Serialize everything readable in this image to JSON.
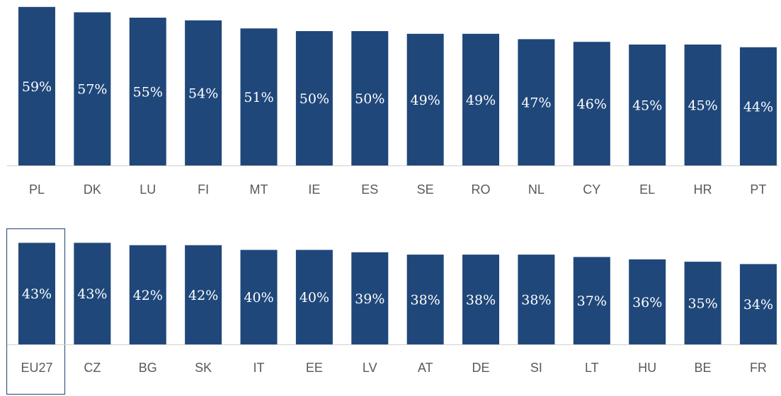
{
  "chart_data": [
    {
      "type": "bar",
      "categories": [
        "PL",
        "DK",
        "LU",
        "FI",
        "MT",
        "IE",
        "ES",
        "SE",
        "RO",
        "NL",
        "CY",
        "EL",
        "HR",
        "PT"
      ],
      "values": [
        59,
        57,
        55,
        54,
        51,
        50,
        50,
        49,
        49,
        47,
        46,
        45,
        45,
        44
      ],
      "value_labels": [
        "59%",
        "57%",
        "55%",
        "54%",
        "51%",
        "50%",
        "50%",
        "49%",
        "49%",
        "47%",
        "46%",
        "45%",
        "45%",
        "44%"
      ],
      "color": "#1f477a",
      "ylim": [
        0,
        60
      ]
    },
    {
      "type": "bar",
      "categories": [
        "EU27",
        "CZ",
        "BG",
        "SK",
        "IT",
        "EE",
        "LV",
        "AT",
        "DE",
        "SI",
        "LT",
        "HU",
        "BE",
        "FR"
      ],
      "values": [
        43,
        43,
        42,
        42,
        40,
        40,
        39,
        38,
        38,
        38,
        37,
        36,
        35,
        34
      ],
      "value_labels": [
        "43%",
        "43%",
        "42%",
        "42%",
        "40%",
        "40%",
        "39%",
        "38%",
        "38%",
        "38%",
        "37%",
        "36%",
        "35%",
        "34%"
      ],
      "color": "#1f477a",
      "ylim": [
        0,
        50
      ]
    }
  ]
}
